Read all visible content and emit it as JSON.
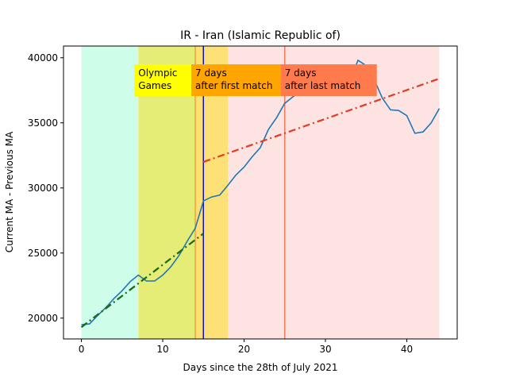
{
  "chart_data": {
    "type": "line",
    "title": "IR - Iran (Islamic Republic of)",
    "xlabel": "Days since the 28th of July 2021",
    "ylabel": "Current MA - Previous MA",
    "xlim": [
      -2.2,
      46.2
    ],
    "ylim": [
      18400,
      40900
    ],
    "xticks": [
      0,
      10,
      20,
      30,
      40
    ],
    "yticks": [
      20000,
      25000,
      30000,
      35000,
      40000
    ],
    "grid": false,
    "regions": [
      {
        "x0": 0,
        "x1": 7,
        "color": "#cefde9"
      },
      {
        "x0": 7,
        "x1": 14,
        "color": "#e6ed76"
      },
      {
        "x0": 14,
        "x1": 18,
        "color": "#fee176"
      },
      {
        "x0": 18,
        "x1": 44,
        "color": "#fde4e3"
      }
    ],
    "vlines": [
      {
        "x": 14,
        "color": "#f5a030"
      },
      {
        "x": 15,
        "color": "#1010c8"
      },
      {
        "x": 25,
        "color": "#f47a58"
      }
    ],
    "annotations": [
      {
        "text": "Olympic\nGames",
        "x": 7,
        "y": 37300,
        "bg": "#ffff00",
        "w": 72
      },
      {
        "text": "7 days\nafter first match",
        "x": 14,
        "y": 37300,
        "bg": "#ffa500",
        "w": 113
      },
      {
        "text": "7 days\nafter last match",
        "x": 25,
        "y": 37300,
        "bg": "#ff7b4d",
        "w": 121
      }
    ],
    "series": [
      {
        "color": "#1f77b4",
        "style": "solid",
        "x": [
          0,
          1,
          2,
          3,
          4,
          5,
          6,
          7,
          8,
          9,
          10,
          11,
          12,
          13,
          14,
          15,
          16,
          17,
          18,
          19,
          20,
          21,
          22,
          23,
          24,
          25,
          26,
          27,
          28,
          29,
          30,
          31,
          32,
          33,
          34,
          35,
          36,
          37,
          38,
          39,
          40,
          41,
          42,
          43,
          44
        ],
        "values": [
          19500,
          19550,
          20200,
          20800,
          21500,
          22100,
          22800,
          23300,
          22850,
          22850,
          23300,
          23950,
          24800,
          25900,
          26900,
          29000,
          29300,
          29450,
          30200,
          31000,
          31600,
          32400,
          33100,
          34500,
          35400,
          36500,
          37000,
          37500,
          37700,
          37600,
          37400,
          37600,
          37900,
          38200,
          39800,
          39400,
          38300,
          36900,
          36000,
          35950,
          35550,
          34200,
          34300,
          35000,
          36100
        ]
      },
      {
        "color": "#1a6b1a",
        "style": "dashdot",
        "x": [
          0,
          15
        ],
        "values": [
          19300,
          26500
        ]
      },
      {
        "color": "#e0402a",
        "style": "dashdot",
        "x": [
          15,
          44
        ],
        "values": [
          32000,
          38400
        ]
      }
    ]
  }
}
